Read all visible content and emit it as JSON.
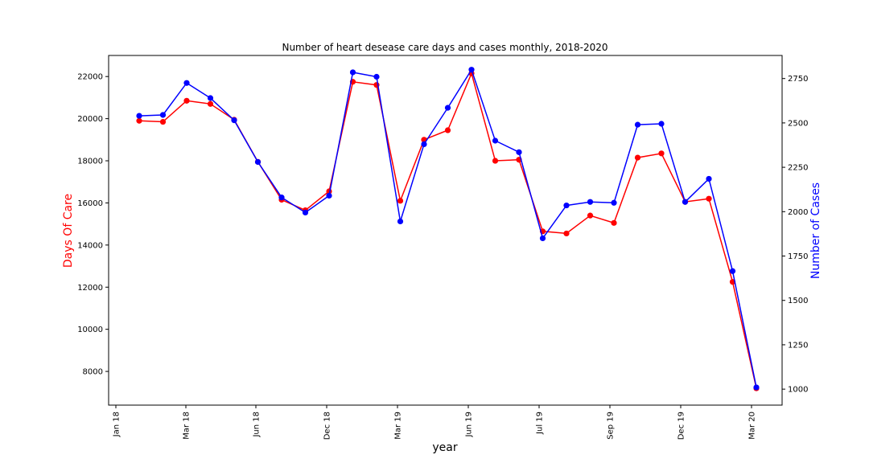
{
  "chart_data": {
    "type": "line",
    "title": "Number of heart desease care days and cases monthly, 2018-2020",
    "xlabel": "year",
    "ylabel": "Days Of Care",
    "y2label": "Number of Cases",
    "ylim": [
      6400,
      23000
    ],
    "y2lim": [
      910,
      2880
    ],
    "yticks": [
      8000,
      10000,
      12000,
      14000,
      16000,
      18000,
      20000,
      22000
    ],
    "y2ticks": [
      1000,
      1250,
      1500,
      1750,
      2000,
      2250,
      2500,
      2750
    ],
    "x_tick_labels": [
      "Jan 18",
      "Mar 18",
      "Jun 18",
      "Dec 18",
      "Mar 19",
      "Jun 19",
      "Jul 19",
      "Sep 19",
      "Dec 19",
      "Mar 20"
    ],
    "colors": {
      "days": "#ff0000",
      "cases": "#0000ff"
    },
    "series": [
      {
        "name": "Days Of Care",
        "axis": "left",
        "color": "#ff0000",
        "values": [
          19900,
          19850,
          20850,
          20700,
          19950,
          17950,
          16150,
          15650,
          16550,
          21750,
          21600,
          16100,
          19000,
          19450,
          22150,
          18000,
          18050,
          14650,
          14550,
          15400,
          15050,
          18150,
          18350,
          16050,
          16200,
          12250,
          7200
        ]
      },
      {
        "name": "Number of Cases",
        "axis": "right",
        "color": "#0000ff",
        "values": [
          2540,
          2545,
          2725,
          2640,
          2515,
          2280,
          2080,
          1995,
          2090,
          2785,
          2760,
          1945,
          2380,
          2585,
          2800,
          2400,
          2335,
          1850,
          2035,
          2055,
          2050,
          2490,
          2495,
          2055,
          2185,
          1665,
          1010
        ]
      }
    ]
  }
}
